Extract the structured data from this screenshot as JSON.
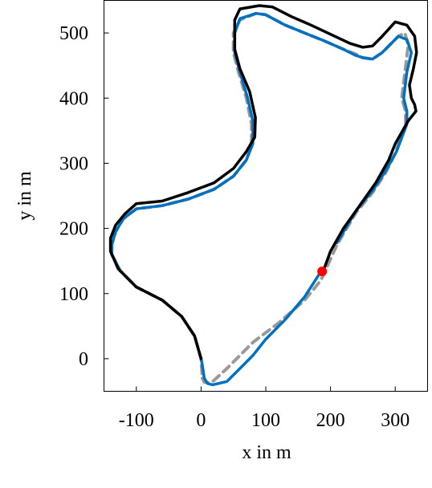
{
  "chart_data": {
    "type": "line",
    "title": "",
    "xlabel": "x in m",
    "ylabel": "y in m",
    "xlim": [
      -150,
      350
    ],
    "ylim": [
      -50,
      550
    ],
    "x_ticks": [
      -100,
      0,
      100,
      200,
      300
    ],
    "x_tick_labels": [
      "-100",
      "0",
      "100",
      "200",
      "300"
    ],
    "y_ticks": [
      0,
      100,
      200,
      300,
      400,
      500
    ],
    "y_tick_labels": [
      "0",
      "100",
      "200",
      "300",
      "400",
      "500"
    ],
    "grid": false,
    "legend": null,
    "series": [
      {
        "color": "#999999",
        "style": "dashed",
        "x": [
          2,
          5,
          10,
          18,
          40,
          80,
          120,
          160,
          185,
          210,
          240,
          265,
          285,
          300,
          316,
          316,
          310,
          315,
          320,
          315,
          305,
          280,
          265,
          250,
          238,
          220,
          190,
          160,
          130,
          100,
          85,
          60,
          50,
          50,
          58,
          70,
          78,
          78,
          70,
          50,
          20,
          -20,
          -60,
          -100,
          -120,
          -132,
          -138,
          -138,
          -125,
          -100,
          -60,
          -30,
          -10,
          0,
          2
        ],
        "y": [
          -30,
          -36,
          -37,
          -35,
          -15,
          25,
          55,
          90,
          120,
          175,
          225,
          255,
          285,
          315,
          360,
          380,
          400,
          440,
          480,
          500,
          495,
          470,
          460,
          462,
          468,
          475,
          488,
          500,
          512,
          528,
          530,
          520,
          500,
          470,
          440,
          400,
          360,
          330,
          305,
          280,
          260,
          245,
          235,
          230,
          215,
          195,
          175,
          160,
          135,
          110,
          90,
          65,
          35,
          0,
          -30
        ]
      },
      {
        "color": "#0070c0",
        "style": "solid",
        "x": [
          186,
          160,
          130,
          100,
          80,
          60,
          40,
          18,
          10,
          5,
          2,
          0,
          -10,
          -30,
          -60,
          -100,
          -125,
          -138,
          -138,
          -132,
          -120,
          -100,
          -60,
          -20,
          20,
          50,
          70,
          80,
          80,
          72,
          60,
          52,
          52,
          60,
          85,
          100,
          130,
          160,
          190,
          220,
          238,
          250,
          265,
          280,
          305,
          318,
          325,
          318,
          313,
          318,
          318,
          302,
          285,
          265,
          240,
          210
        ],
        "y": [
          135,
          95,
          60,
          30,
          5,
          -15,
          -35,
          -40,
          -38,
          -30,
          -10,
          0,
          35,
          65,
          90,
          110,
          135,
          160,
          175,
          195,
          215,
          230,
          235,
          245,
          260,
          280,
          305,
          330,
          365,
          400,
          440,
          470,
          500,
          522,
          530,
          528,
          512,
          500,
          488,
          475,
          466,
          462,
          460,
          470,
          495,
          490,
          470,
          440,
          400,
          380,
          360,
          318,
          288,
          258,
          228,
          178
        ]
      },
      {
        "color": "#000000",
        "style": "solid",
        "x": [
          0,
          -10,
          -30,
          -60,
          -100,
          -128,
          -140,
          -140,
          -132,
          -118,
          -100,
          -60,
          -20,
          20,
          50,
          70,
          83,
          84,
          75,
          60,
          52,
          52,
          60,
          90,
          110,
          140,
          170,
          200,
          230,
          250,
          265,
          280,
          300,
          318,
          330,
          333,
          328,
          322,
          325,
          330,
          332,
          320,
          300,
          290,
          270,
          245,
          220,
          200,
          189
        ],
        "y": [
          0,
          35,
          65,
          90,
          110,
          138,
          165,
          185,
          205,
          222,
          238,
          242,
          255,
          270,
          292,
          318,
          340,
          370,
          410,
          445,
          475,
          520,
          537,
          542,
          540,
          525,
          512,
          498,
          484,
          478,
          480,
          495,
          517,
          512,
          495,
          470,
          445,
          420,
          400,
          390,
          380,
          365,
          330,
          305,
          270,
          235,
          200,
          165,
          135
        ]
      }
    ],
    "marker": {
      "x": 187,
      "y": 134,
      "color": "#ff0000"
    }
  }
}
